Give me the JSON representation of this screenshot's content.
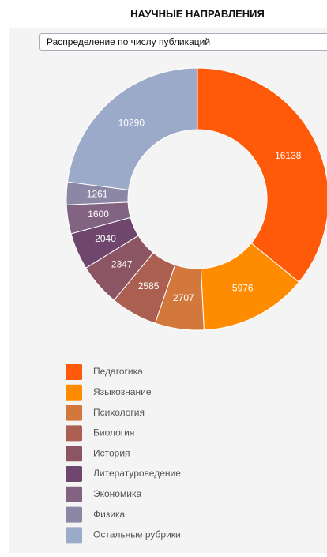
{
  "dropdown": {
    "label": "Распределение по числу публикаций"
  },
  "chart_data": {
    "type": "donut",
    "title": "НАУЧНЫЕ НАПРАВЛЕНИЯ",
    "categories": [
      "Педагогика",
      "Языкознание",
      "Психология",
      "Биология",
      "История",
      "Литературоведение",
      "Экономика",
      "Физика",
      "Остальные рубрики"
    ],
    "values": [
      16138,
      5976,
      2707,
      2585,
      2347,
      2040,
      1600,
      1261,
      10290
    ],
    "colors": [
      "#ff5a0a",
      "#ff8c00",
      "#d2783c",
      "#aa5f50",
      "#8c5564",
      "#6e466e",
      "#826482",
      "#8c87a5",
      "#9baac8"
    ]
  }
}
